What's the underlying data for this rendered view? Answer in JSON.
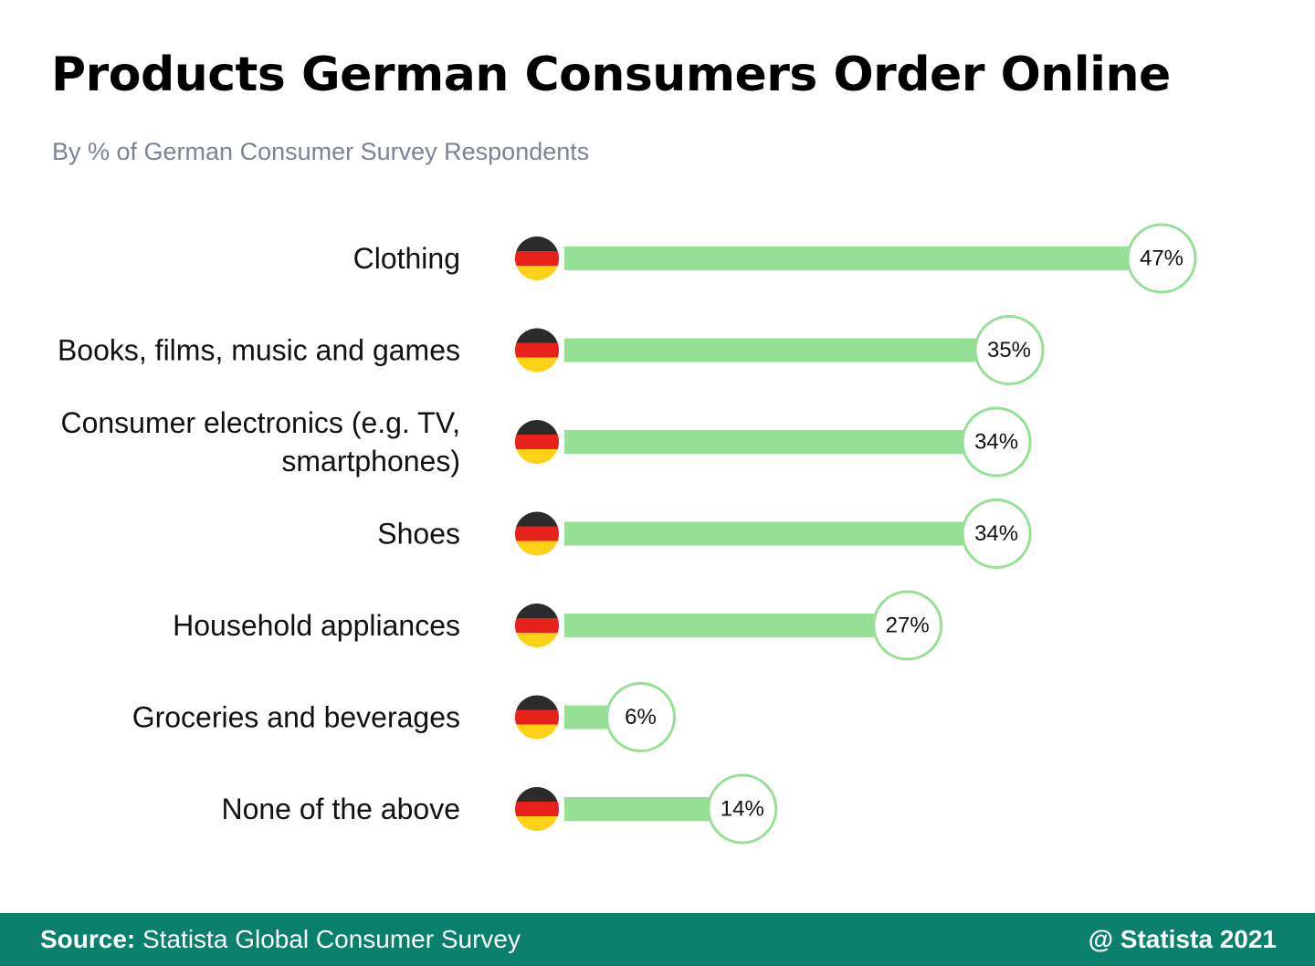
{
  "header": {
    "title": "Products German Consumers Order Online",
    "subtitle": "By % of German Consumer Survey Respondents"
  },
  "chart_data": {
    "type": "bar",
    "orientation": "horizontal",
    "categories": [
      "Clothing",
      "Books, films, music and games",
      "Consumer electronics (e.g. TV, smartphones)",
      "Shoes",
      "Household appliances",
      "Groceries and beverages",
      "None of the above"
    ],
    "category_lines": [
      [
        "Clothing"
      ],
      [
        "Books, films, music and games"
      ],
      [
        "Consumer electronics (e.g. TV,",
        "smartphones)"
      ],
      [
        "Shoes"
      ],
      [
        "Household appliances"
      ],
      [
        "Groceries and beverages"
      ],
      [
        "None of the above"
      ]
    ],
    "values": [
      47,
      35,
      34,
      34,
      27,
      6,
      14
    ],
    "value_labels": [
      "47%",
      "35%",
      "34%",
      "34%",
      "27%",
      "6%",
      "14%"
    ],
    "title": "Products German Consumers Order Online",
    "subtitle": "By % of German Consumer Survey Respondents",
    "xlabel": "",
    "ylabel": "",
    "xlim": [
      0,
      47
    ],
    "grid": false,
    "legend": "none",
    "row_icon": "germany-flag-icon",
    "colors": {
      "bar": "#95e095",
      "value_circle_stroke": "#95e095",
      "value_circle_fill": "#ffffff",
      "flag_black": "#2b2b2b",
      "flag_red": "#e8211c",
      "flag_gold": "#fcd116"
    }
  },
  "footer": {
    "source_key": "Source:",
    "source_value": "Statista Global Consumer Survey",
    "credit": "@ Statista 2021",
    "background": "#0a7f6b"
  }
}
